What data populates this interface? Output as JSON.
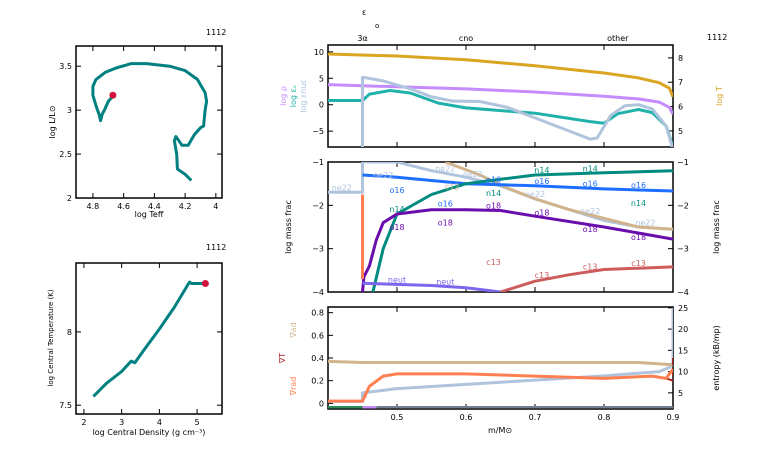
{
  "chart_data": [
    {
      "id": "hr",
      "type": "line",
      "model_number": "1112",
      "xlabel": "log Teff",
      "ylabel": "log L/L⊙",
      "xlim": [
        4.91,
        3.96
      ],
      "ylim": [
        2.0,
        3.73
      ],
      "xticks": [
        4.8,
        4.6,
        4.4,
        4.2,
        4
      ],
      "xticklabels": [
        "4.8",
        "4.6",
        "4.4",
        "4.2",
        "4"
      ],
      "yticks": [
        2,
        2.5,
        3,
        3.5
      ],
      "yticklabels": [
        "2",
        "2.5",
        "3",
        "3.5"
      ],
      "track_color": "#008080",
      "marker_color": "#d2143c",
      "x": [
        4.16,
        4.2,
        4.25,
        4.255,
        4.27,
        4.26,
        4.22,
        4.18,
        4.14,
        4.1,
        4.08,
        4.07,
        4.06,
        4.07,
        4.12,
        4.2,
        4.3,
        4.45,
        4.55,
        4.65,
        4.72,
        4.78,
        4.8,
        4.8,
        4.78,
        4.76,
        4.75,
        4.74,
        4.72,
        4.7,
        4.67
      ],
      "y": [
        2.2,
        2.27,
        2.33,
        2.5,
        2.65,
        2.7,
        2.6,
        2.6,
        2.72,
        2.8,
        2.82,
        3.0,
        3.1,
        3.2,
        3.35,
        3.45,
        3.5,
        3.53,
        3.53,
        3.48,
        3.43,
        3.35,
        3.27,
        3.17,
        3.05,
        2.95,
        2.88,
        2.95,
        3.02,
        3.1,
        3.16
      ],
      "current": [
        4.67,
        3.17
      ]
    },
    {
      "id": "trho",
      "type": "line",
      "model_number": "1112",
      "xlabel": "log Central Density (g cm⁻³)",
      "ylabel": "log Central Temperature (K)",
      "xlim": [
        1.79,
        5.66
      ],
      "ylim": [
        7.44,
        8.47
      ],
      "xticks": [
        2,
        3,
        4,
        5
      ],
      "xticklabels": [
        "2",
        "3",
        "4",
        "5"
      ],
      "yticks": [
        7.5,
        8
      ],
      "yticklabels": [
        "7.5",
        "8"
      ],
      "track_color": "#008080",
      "marker_color": "#d2143c",
      "x": [
        2.25,
        2.6,
        3.0,
        3.25,
        3.35,
        3.6,
        4.0,
        4.4,
        4.75,
        4.8,
        4.85,
        5.2
      ],
      "y": [
        7.56,
        7.65,
        7.73,
        7.8,
        7.79,
        7.88,
        8.02,
        8.17,
        8.32,
        8.34,
        8.33,
        8.33
      ],
      "current": [
        5.22,
        8.33
      ]
    },
    {
      "id": "profile-top",
      "type": "line",
      "model_number": "1112",
      "top_labels": [
        "3α",
        "cno",
        "other"
      ],
      "top_label_x": [
        0.45,
        0.6,
        0.82
      ],
      "top_symbols": [
        "ε",
        "o"
      ],
      "xlim": [
        0.4,
        0.9
      ],
      "ylim": [
        -8.0,
        11.3
      ],
      "yticks": [
        10,
        5,
        0,
        -5
      ],
      "yticklabels": [
        "10",
        "5",
        "0",
        "−5"
      ],
      "ylim_right": [
        4.34,
        8.53
      ],
      "yticks_right": [
        8,
        7,
        6,
        5
      ],
      "yticklabels_right": [
        "8",
        "7",
        "6",
        "5"
      ],
      "ylabel_right": "log T",
      "ylabels_left": [
        {
          "text": "log ρ",
          "color": "#c58cff"
        },
        {
          "text": "log εᵥ",
          "color": "#20b2aa"
        },
        {
          "text": "log εnuc",
          "color": "#b0c4de"
        }
      ],
      "series": [
        {
          "name": "log T",
          "axis": "right",
          "color": "#daa520",
          "x": [
            0.4,
            0.5,
            0.6,
            0.7,
            0.8,
            0.85,
            0.88,
            0.895,
            0.9
          ],
          "y": [
            8.16,
            8.08,
            7.92,
            7.68,
            7.38,
            7.18,
            6.98,
            6.75,
            6.4
          ]
        },
        {
          "name": "log ρ",
          "axis": "left",
          "color": "#c58cff",
          "x": [
            0.4,
            0.5,
            0.6,
            0.7,
            0.8,
            0.85,
            0.88,
            0.895,
            0.9
          ],
          "y": [
            3.8,
            3.4,
            3.0,
            2.4,
            1.6,
            1.1,
            0.5,
            -0.5,
            -1.8
          ]
        },
        {
          "name": "log εᵥ",
          "axis": "left",
          "color": "#20b2aa",
          "x": [
            0.4,
            0.45,
            0.46,
            0.49,
            0.52,
            0.56,
            0.6,
            0.7,
            0.78,
            0.8,
            0.82,
            0.85,
            0.87,
            0.89,
            0.9
          ],
          "y": [
            0.8,
            0.8,
            2.0,
            2.7,
            2.2,
            0.3,
            -0.6,
            -1.6,
            -3.2,
            -3.5,
            -1.7,
            -0.9,
            -1.5,
            -4,
            -8
          ]
        },
        {
          "name": "log εnuc",
          "axis": "left",
          "color": "#b0c4de",
          "x": [
            0.45,
            0.45,
            0.48,
            0.52,
            0.55,
            0.58,
            0.62,
            0.66,
            0.7,
            0.74,
            0.78,
            0.79,
            0.81,
            0.83,
            0.85,
            0.87,
            0.89,
            0.9
          ],
          "y": [
            -8.5,
            5.2,
            4.5,
            3.0,
            1.5,
            0.7,
            0.6,
            -0.5,
            -2.5,
            -4.5,
            -6.5,
            -6.3,
            -2,
            -0.2,
            0,
            -0.8,
            -4,
            -8.5
          ]
        }
      ]
    },
    {
      "id": "profile-abund",
      "type": "line",
      "ylabel": "log mass frac",
      "ylabel_right": "log mass frac",
      "xlim": [
        0.4,
        0.9
      ],
      "ylim": [
        -4,
        -1
      ],
      "yticks": [
        -1,
        -2,
        -3,
        -4
      ],
      "yticklabels": [
        "−1",
        "−2",
        "−3",
        "−4"
      ],
      "series": [
        {
          "name": "ne22",
          "color": "#b0c4de",
          "x": [
            0.4,
            0.45,
            0.45,
            0.5,
            0.55,
            0.6,
            0.65,
            0.7,
            0.75,
            0.8,
            0.85,
            0.9
          ],
          "y": [
            -1.7,
            -1.7,
            -1.0,
            -1.0,
            -1.2,
            -1.35,
            -1.55,
            -1.85,
            -2.1,
            -2.35,
            -2.5,
            -2.55
          ],
          "label_x": [
            0.42,
            0.48,
            0.57,
            0.61,
            0.7,
            0.78,
            0.86
          ]
        },
        {
          "name": "c12",
          "color": "#d2b48c",
          "x": [
            0.57,
            0.62,
            0.66,
            0.7,
            0.75,
            0.8,
            0.85,
            0.9
          ],
          "y": [
            -1.0,
            -1.3,
            -1.6,
            -1.85,
            -2.1,
            -2.3,
            -2.5,
            -2.55
          ],
          "label_x": [
            0.58
          ]
        },
        {
          "name": "o16",
          "color": "#1e6eff",
          "x": [
            0.45,
            0.5,
            0.6,
            0.7,
            0.8,
            0.9
          ],
          "y": [
            -1.3,
            -1.35,
            -1.5,
            -1.55,
            -1.62,
            -1.67
          ],
          "label_x": [
            0.5,
            0.57,
            0.64,
            0.71,
            0.78,
            0.85
          ]
        },
        {
          "name": "n14",
          "color": "#008b80",
          "x": [
            0.465,
            0.48,
            0.5,
            0.55,
            0.6,
            0.65,
            0.7,
            0.8,
            0.9
          ],
          "y": [
            -4,
            -3.0,
            -2.2,
            -1.75,
            -1.5,
            -1.4,
            -1.3,
            -1.25,
            -1.2
          ],
          "label_x": [
            0.5,
            0.64,
            0.71,
            0.78,
            0.85
          ]
        },
        {
          "name": "o18",
          "color": "#6a0dad",
          "x": [
            0.45,
            0.452,
            0.46,
            0.47,
            0.48,
            0.5,
            0.55,
            0.6,
            0.65,
            0.7,
            0.8,
            0.9
          ],
          "y": [
            -4,
            -3.65,
            -3.4,
            -2.8,
            -2.4,
            -2.2,
            -2.1,
            -2.1,
            -2.12,
            -2.25,
            -2.5,
            -2.78
          ],
          "label_x": [
            0.5,
            0.57,
            0.64,
            0.71,
            0.78,
            0.85
          ]
        },
        {
          "name": "neut",
          "color": "#7b68ee",
          "x": [
            0.45,
            0.55,
            0.6,
            0.65
          ],
          "y": [
            -3.8,
            -3.85,
            -3.9,
            -4.0
          ],
          "label_x": [
            0.5,
            0.57
          ]
        },
        {
          "name": "c13",
          "color": "#cd5c5c",
          "x": [
            0.65,
            0.7,
            0.75,
            0.8,
            0.9
          ],
          "y": [
            -4,
            -3.75,
            -3.6,
            -3.48,
            -3.42
          ],
          "label_x": [
            0.64,
            0.71,
            0.78,
            0.85
          ]
        },
        {
          "name": "",
          "color": "#ff7f50",
          "x": [
            0.45,
            0.45
          ],
          "y": [
            -1.75,
            -3.7
          ],
          "label_x": []
        }
      ]
    },
    {
      "id": "profile-grad",
      "type": "line",
      "xlabel": "m/M⊙",
      "xlim": [
        0.4,
        0.9
      ],
      "xticks": [
        0.5,
        0.6,
        0.7,
        0.8,
        0.9
      ],
      "xticklabels": [
        "0.5",
        "0.6",
        "0.7",
        "0.8",
        "0.9"
      ],
      "ylim": [
        -0.05,
        0.85
      ],
      "yticks": [
        0,
        0.2,
        0.4,
        0.6,
        0.8
      ],
      "yticklabels": [
        "0",
        "0.2",
        "0.4",
        "0.6",
        "0.8"
      ],
      "ylim_right": [
        1.2,
        25.2
      ],
      "yticks_right": [
        5,
        10,
        15,
        20,
        25
      ],
      "yticklabels_right": [
        "5",
        "10",
        "15",
        "20",
        "25"
      ],
      "ylabel_right": "entropy (kB/mp)",
      "ylabels_left": [
        {
          "text": "∇ad",
          "color": "#d2b48c"
        },
        {
          "text": "∇T",
          "color": "#b22222"
        },
        {
          "text": "∇rad",
          "color": "#ff7f50"
        }
      ],
      "series": [
        {
          "name": "entropy",
          "axis": "right",
          "color": "#b0c4de",
          "x": [
            0.4,
            0.45,
            0.45,
            0.5,
            0.6,
            0.7,
            0.8,
            0.88,
            0.895,
            0.9,
            0.9
          ],
          "y": [
            3,
            3,
            5,
            6,
            7,
            8,
            9,
            10,
            11,
            12,
            25
          ]
        },
        {
          "name": "∇ad",
          "axis": "left",
          "color": "#d2b48c",
          "x": [
            0.4,
            0.45,
            0.5,
            0.85,
            0.9
          ],
          "y": [
            0.37,
            0.36,
            0.36,
            0.36,
            0.34
          ]
        },
        {
          "name": "∇T",
          "axis": "left",
          "color": "#b22222",
          "dash": true,
          "x": [
            0.4,
            0.45,
            0.46,
            0.48,
            0.5,
            0.6,
            0.7,
            0.8,
            0.87,
            0.89,
            0.9,
            0.9
          ],
          "y": [
            0.02,
            0.02,
            0.15,
            0.24,
            0.26,
            0.26,
            0.24,
            0.22,
            0.24,
            0.22,
            0.2,
            0.4
          ]
        },
        {
          "name": "∇rad",
          "axis": "left",
          "color": "#ff7f50",
          "x": [
            0.4,
            0.45,
            0.46,
            0.48,
            0.5,
            0.6,
            0.7,
            0.8,
            0.87,
            0.89,
            0.9
          ],
          "y": [
            0.02,
            0.02,
            0.15,
            0.24,
            0.26,
            0.26,
            0.24,
            0.22,
            0.24,
            0.22,
            0.3
          ]
        }
      ],
      "mixing_bars": [
        {
          "x": [
            0.4,
            0.45
          ],
          "color": "#2e8b57"
        },
        {
          "x": [
            0.45,
            0.47
          ],
          "color": "#c58cff"
        },
        {
          "x": [
            0.47,
            0.9
          ],
          "color": "#708090"
        }
      ]
    }
  ]
}
